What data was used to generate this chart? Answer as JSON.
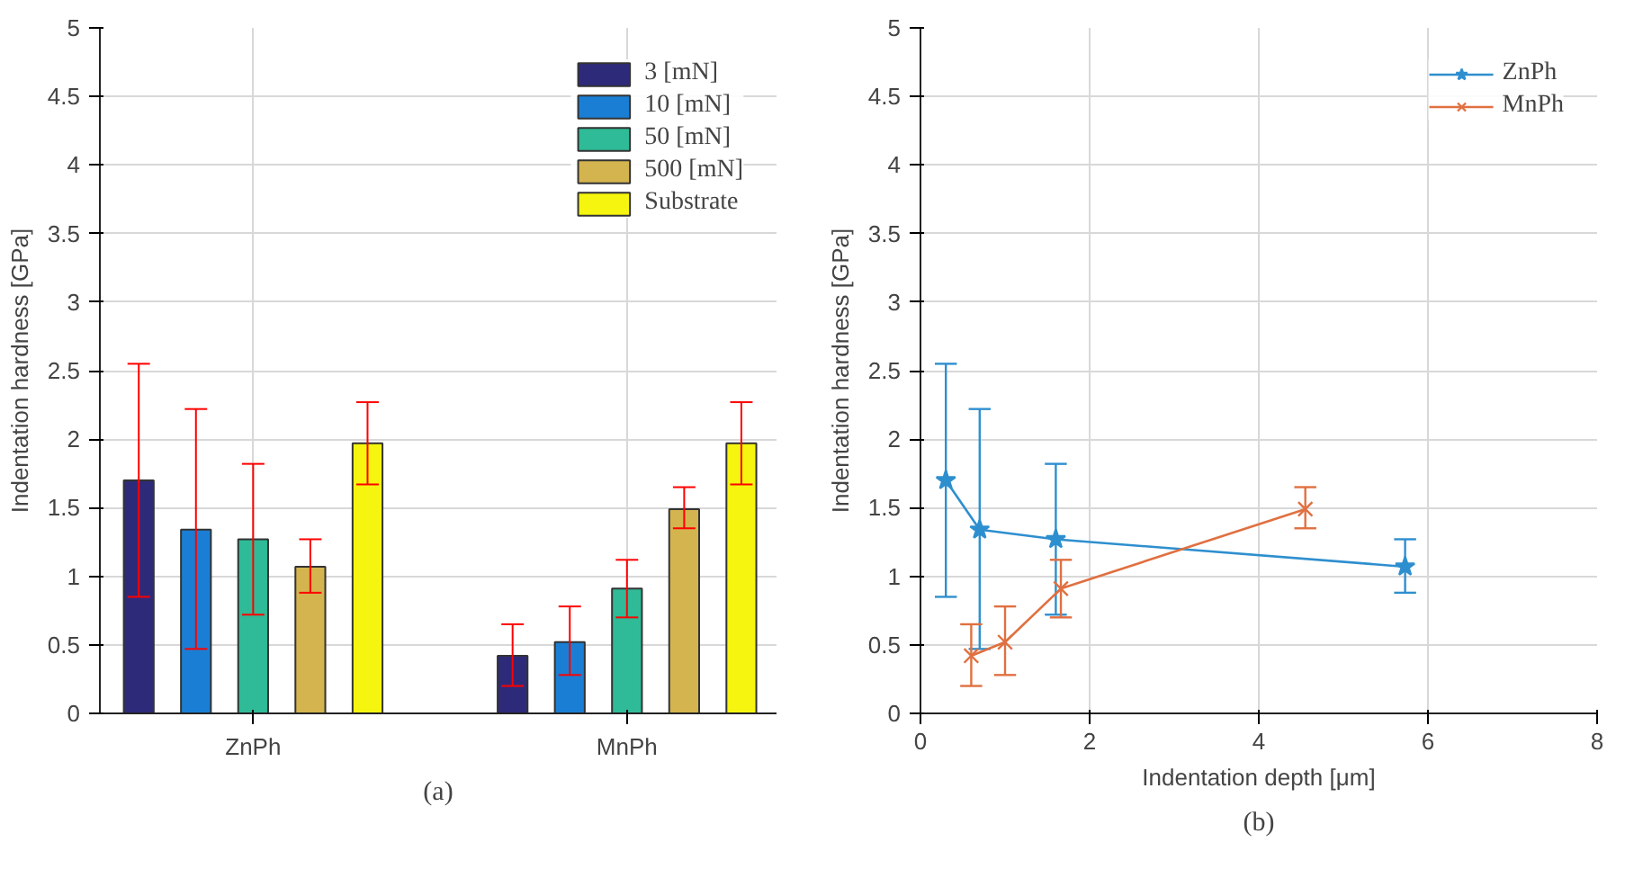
{
  "chart_data": [
    {
      "type": "bar",
      "categories": [
        "ZnPh",
        "MnPh"
      ],
      "ylabel": "Indentation hardness [GPa]",
      "ylim": [
        0,
        5
      ],
      "yticks": [
        0,
        0.5,
        1,
        1.5,
        2,
        2.5,
        3,
        3.5,
        4,
        4.5,
        5
      ],
      "grid": true,
      "legend": "top right",
      "annotations": [
        "(a)"
      ],
      "series": [
        {
          "name": "3 [mN]",
          "color": "#2e2a7a",
          "values": [
            1.7,
            0.42
          ],
          "errors": [
            [
              0.85,
              2.55
            ],
            [
              0.2,
              0.65
            ]
          ]
        },
        {
          "name": "10 [mN]",
          "color": "#1a7fd4",
          "values": [
            1.34,
            0.52
          ],
          "errors": [
            [
              0.47,
              2.22
            ],
            [
              0.28,
              0.78
            ]
          ]
        },
        {
          "name": "50 [mN]",
          "color": "#2fbb97",
          "values": [
            1.27,
            0.91
          ],
          "errors": [
            [
              0.72,
              1.82
            ],
            [
              0.7,
              1.12
            ]
          ]
        },
        {
          "name": "500 [mN]",
          "color": "#d4b44e",
          "values": [
            1.07,
            1.49
          ],
          "errors": [
            [
              0.88,
              1.27
            ],
            [
              1.35,
              1.65
            ]
          ]
        },
        {
          "name": "Substrate",
          "color": "#f5f50f",
          "values": [
            1.97,
            1.97
          ],
          "errors": [
            [
              1.67,
              2.27
            ],
            [
              1.67,
              2.27
            ]
          ]
        }
      ]
    },
    {
      "type": "line",
      "xlabel": "Indentation depth [μm]",
      "ylabel": "Indentation hardness [GPa]",
      "xlim": [
        0,
        8
      ],
      "xticks": [
        0,
        2,
        4,
        6,
        8
      ],
      "ylim": [
        0,
        5
      ],
      "yticks": [
        0,
        0.5,
        1,
        1.5,
        2,
        2.5,
        3,
        3.5,
        4,
        4.5,
        5
      ],
      "grid": true,
      "legend": "top right",
      "annotations": [
        "(b)"
      ],
      "series": [
        {
          "name": "ZnPh",
          "color": "#2e8fcf",
          "marker": "star",
          "x": [
            0.3,
            0.7,
            1.6,
            5.73
          ],
          "values": [
            1.7,
            1.34,
            1.27,
            1.07
          ],
          "errors": [
            [
              0.85,
              2.55
            ],
            [
              0.47,
              2.22
            ],
            [
              0.72,
              1.82
            ],
            [
              0.88,
              1.27
            ]
          ]
        },
        {
          "name": "MnPh",
          "color": "#e07040",
          "marker": "cross",
          "x": [
            0.6,
            1.0,
            1.66,
            4.55
          ],
          "values": [
            0.42,
            0.52,
            0.91,
            1.49
          ],
          "errors": [
            [
              0.2,
              0.65
            ],
            [
              0.28,
              0.78
            ],
            [
              0.7,
              1.12
            ],
            [
              1.35,
              1.65
            ]
          ]
        }
      ]
    }
  ]
}
